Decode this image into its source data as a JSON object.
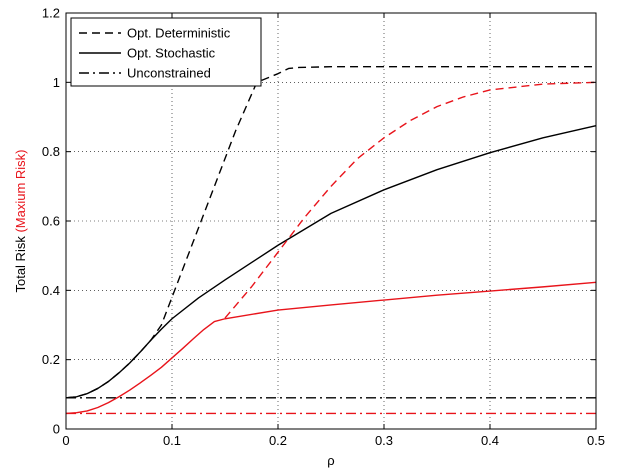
{
  "chart_data": {
    "type": "line",
    "xlabel": "ρ",
    "ylabel_parts": [
      {
        "text": "Total Risk ",
        "color": "#000000"
      },
      {
        "text": "(Maxium Risk)",
        "color": "#e8141b"
      }
    ],
    "xlim": [
      0,
      0.5
    ],
    "ylim": [
      0,
      1.2
    ],
    "x_ticks": [
      0,
      0.1,
      0.2,
      0.3,
      0.4,
      0.5
    ],
    "y_ticks": [
      0,
      0.2,
      0.4,
      0.6,
      0.8,
      1.0,
      1.2
    ],
    "x_tick_labels": [
      "0",
      "0.1",
      "0.2",
      "0.3",
      "0.4",
      "0.5"
    ],
    "y_tick_labels": [
      "0",
      "0.2",
      "0.4",
      "0.6",
      "0.8",
      "1",
      "1.2"
    ],
    "grid": true,
    "legend_position": "top-left",
    "legend": [
      {
        "label": "Opt. Deterministic",
        "style": "dashed",
        "color": "#000000"
      },
      {
        "label": "Opt. Stochastic",
        "style": "solid",
        "color": "#000000"
      },
      {
        "label": "Unconstrained",
        "style": "dashdot",
        "color": "#000000"
      }
    ],
    "series": [
      {
        "id": "total-deterministic",
        "style": "dashed",
        "color": "#000000",
        "x": [
          0,
          0.01,
          0.02,
          0.03,
          0.04,
          0.05,
          0.06,
          0.07,
          0.08,
          0.09,
          0.1,
          0.12,
          0.14,
          0.16,
          0.18,
          0.2,
          0.21,
          0.22,
          0.25,
          0.3,
          0.4,
          0.5
        ],
        "y": [
          0.09,
          0.093,
          0.102,
          0.117,
          0.137,
          0.162,
          0.19,
          0.222,
          0.256,
          0.3,
          0.38,
          0.54,
          0.7,
          0.86,
          1.0,
          1.025,
          1.04,
          1.043,
          1.045,
          1.045,
          1.045,
          1.045
        ]
      },
      {
        "id": "total-stochastic",
        "style": "solid",
        "color": "#000000",
        "x": [
          0,
          0.01,
          0.02,
          0.03,
          0.04,
          0.05,
          0.06,
          0.07,
          0.08,
          0.09,
          0.1,
          0.125,
          0.15,
          0.175,
          0.2,
          0.25,
          0.3,
          0.35,
          0.4,
          0.45,
          0.5
        ],
        "y": [
          0.09,
          0.093,
          0.102,
          0.117,
          0.137,
          0.162,
          0.19,
          0.222,
          0.256,
          0.288,
          0.318,
          0.378,
          0.43,
          0.48,
          0.53,
          0.622,
          0.69,
          0.748,
          0.797,
          0.84,
          0.875
        ]
      },
      {
        "id": "total-unconstrained",
        "style": "dashdot",
        "color": "#000000",
        "x": [
          0,
          0.5
        ],
        "y": [
          0.09,
          0.09
        ]
      },
      {
        "id": "max-deterministic",
        "style": "dashed",
        "color": "#e8141b",
        "x": [
          0.15,
          0.175,
          0.2,
          0.225,
          0.25,
          0.275,
          0.3,
          0.325,
          0.35,
          0.375,
          0.4,
          0.45,
          0.5
        ],
        "y": [
          0.32,
          0.41,
          0.51,
          0.61,
          0.7,
          0.78,
          0.84,
          0.89,
          0.93,
          0.958,
          0.978,
          0.995,
          1.0
        ]
      },
      {
        "id": "max-stochastic",
        "style": "solid",
        "color": "#e8141b",
        "x": [
          0,
          0.01,
          0.02,
          0.03,
          0.04,
          0.05,
          0.06,
          0.07,
          0.08,
          0.09,
          0.1,
          0.11,
          0.12,
          0.13,
          0.14,
          0.15,
          0.2,
          0.25,
          0.3,
          0.35,
          0.4,
          0.45,
          0.5
        ],
        "y": [
          0.045,
          0.047,
          0.052,
          0.062,
          0.076,
          0.093,
          0.112,
          0.133,
          0.155,
          0.178,
          0.205,
          0.232,
          0.26,
          0.287,
          0.31,
          0.318,
          0.343,
          0.358,
          0.372,
          0.386,
          0.398,
          0.41,
          0.423
        ]
      },
      {
        "id": "max-unconstrained",
        "style": "dashdot",
        "color": "#e8141b",
        "x": [
          0,
          0.5
        ],
        "y": [
          0.045,
          0.045
        ]
      }
    ]
  }
}
